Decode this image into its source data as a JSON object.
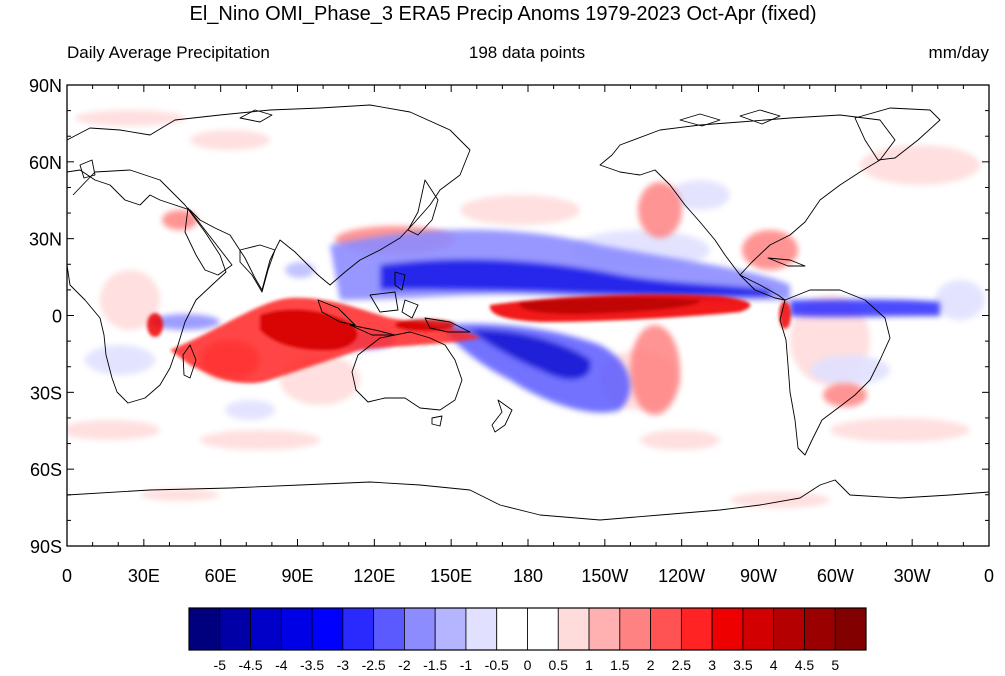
{
  "title": "El_Nino OMI_Phase_3 ERA5 Precip Anoms 1979-2023 Oct-Apr (fixed)",
  "left_string": "Daily Average Precipitation",
  "center_string": "198 data points",
  "right_string": "mm/day",
  "map": {
    "lat_ticks": [
      {
        "lat": 90,
        "label": "90N"
      },
      {
        "lat": 60,
        "label": "60N"
      },
      {
        "lat": 30,
        "label": "30N"
      },
      {
        "lat": 0,
        "label": "0"
      },
      {
        "lat": -30,
        "label": "30S"
      },
      {
        "lat": -60,
        "label": "60S"
      },
      {
        "lat": -90,
        "label": "90S"
      }
    ],
    "lon_ticks": [
      {
        "lon": 0,
        "label": "0"
      },
      {
        "lon": 30,
        "label": "30E"
      },
      {
        "lon": 60,
        "label": "60E"
      },
      {
        "lon": 90,
        "label": "90E"
      },
      {
        "lon": 120,
        "label": "120E"
      },
      {
        "lon": 150,
        "label": "150E"
      },
      {
        "lon": 180,
        "label": "180"
      },
      {
        "lon": 210,
        "label": "150W"
      },
      {
        "lon": 240,
        "label": "120W"
      },
      {
        "lon": 270,
        "label": "90W"
      },
      {
        "lon": 300,
        "label": "60W"
      },
      {
        "lon": 330,
        "label": "30W"
      },
      {
        "lon": 360,
        "label": "0"
      }
    ],
    "anomaly_regions": [
      {
        "name": "Indian Ocean wet band",
        "sign": "positive",
        "level": 3.5,
        "lon": [
          48,
          112
        ],
        "lat": [
          -25,
          8
        ]
      },
      {
        "name": "Maritime Continent wet",
        "sign": "positive",
        "level": 4.5,
        "lon": [
          88,
          162
        ],
        "lat": [
          -10,
          2
        ]
      },
      {
        "name": "Equatorial central-east Pacific wet",
        "sign": "positive",
        "level": 4.5,
        "lon": [
          165,
          265
        ],
        "lat": [
          -3,
          8
        ]
      },
      {
        "name": "East Asia / NW Pacific wet",
        "sign": "positive",
        "level": 2,
        "lon": [
          100,
          165
        ],
        "lat": [
          20,
          40
        ]
      },
      {
        "name": "Gulf of Mexico / SE US wet",
        "sign": "positive",
        "level": 2,
        "lon": [
          255,
          290
        ],
        "lat": [
          18,
          35
        ]
      },
      {
        "name": "Alaska coast wet",
        "sign": "positive",
        "level": 2,
        "lon": [
          205,
          225
        ],
        "lat": [
          40,
          60
        ]
      },
      {
        "name": "Southeast South America wet",
        "sign": "positive",
        "level": 2.5,
        "lon": [
          300,
          320
        ],
        "lat": [
          -38,
          -25
        ]
      },
      {
        "name": "Northwest Pacific dry",
        "sign": "negative",
        "level": -3,
        "lon": [
          110,
          270
        ],
        "lat": [
          3,
          20
        ]
      },
      {
        "name": "Southwest Pacific SPCZ dry",
        "sign": "negative",
        "level": -3,
        "lon": [
          155,
          230
        ],
        "lat": [
          -30,
          -5
        ]
      },
      {
        "name": "Equatorial Atlantic dry",
        "sign": "negative",
        "level": -2.5,
        "lon": [
          280,
          355
        ],
        "lat": [
          -3,
          8
        ]
      },
      {
        "name": "Western Indian Ocean dry",
        "sign": "negative",
        "level": -1.5,
        "lon": [
          40,
          70
        ],
        "lat": [
          -6,
          2
        ]
      }
    ]
  },
  "colorbar": {
    "unit": "mm/day",
    "colors": [
      "#00007f",
      "#0000a6",
      "#0000c8",
      "#0000e6",
      "#0000ff",
      "#2a2aff",
      "#5a5aff",
      "#8c8cff",
      "#b4b4ff",
      "#e1e1ff",
      "#ffffff",
      "#ffffff",
      "#ffdcdc",
      "#ffb0b0",
      "#ff8282",
      "#ff5252",
      "#ff2323",
      "#ef0000",
      "#d20000",
      "#b40000",
      "#9a0000",
      "#820000"
    ],
    "labels": [
      "-5",
      "-4.5",
      "-4",
      "-3.5",
      "-3",
      "-2.5",
      "-2",
      "-1.5",
      "-1",
      "-0.5",
      "0",
      "0.5",
      "1",
      "1.5",
      "2",
      "2.5",
      "3",
      "3.5",
      "4",
      "4.5",
      "5"
    ]
  }
}
